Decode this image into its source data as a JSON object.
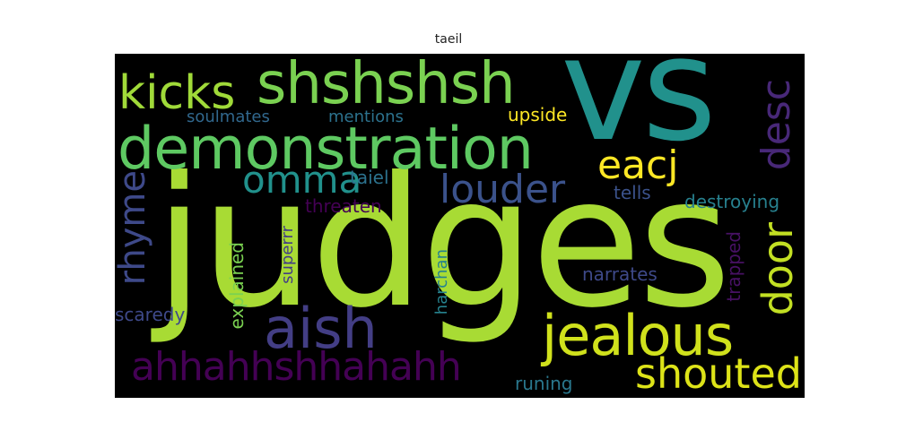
{
  "title": "taeil",
  "background": "#000000",
  "words": [
    {
      "text": "judges",
      "color": "#a8db34"
    },
    {
      "text": "vs",
      "color": "#21918c"
    },
    {
      "text": "demonstration",
      "color": "#5ec962"
    },
    {
      "text": "shshshsh",
      "color": "#7ad151"
    },
    {
      "text": "kicks",
      "color": "#a0da39"
    },
    {
      "text": "jealous",
      "color": "#d0e11c"
    },
    {
      "text": "aish",
      "color": "#433e85"
    },
    {
      "text": "ahhahhshhahahh",
      "color": "#440154"
    },
    {
      "text": "shouted",
      "color": "#dde318"
    },
    {
      "text": "louder",
      "color": "#3b528b"
    },
    {
      "text": "omma",
      "color": "#21918c"
    },
    {
      "text": "eacj",
      "color": "#fde725"
    },
    {
      "text": "door",
      "color": "#c2df23"
    },
    {
      "text": "desc",
      "color": "#482878"
    },
    {
      "text": "rhyme",
      "color": "#3e4989"
    },
    {
      "text": "soulmates",
      "color": "#31688e"
    },
    {
      "text": "mentions",
      "color": "#2c728e"
    },
    {
      "text": "upside",
      "color": "#fde725"
    },
    {
      "text": "taiel",
      "color": "#2c728e"
    },
    {
      "text": "threaten",
      "color": "#440154"
    },
    {
      "text": "tells",
      "color": "#3b528b"
    },
    {
      "text": "destroying",
      "color": "#27808e"
    },
    {
      "text": "explained",
      "color": "#7ad151"
    },
    {
      "text": "superrr",
      "color": "#433e85"
    },
    {
      "text": "harchan",
      "color": "#26828e"
    },
    {
      "text": "narrates",
      "color": "#3e4989"
    },
    {
      "text": "trapped",
      "color": "#471164"
    },
    {
      "text": "scaredy",
      "color": "#3e4989"
    },
    {
      "text": "runing",
      "color": "#2a788e"
    }
  ]
}
